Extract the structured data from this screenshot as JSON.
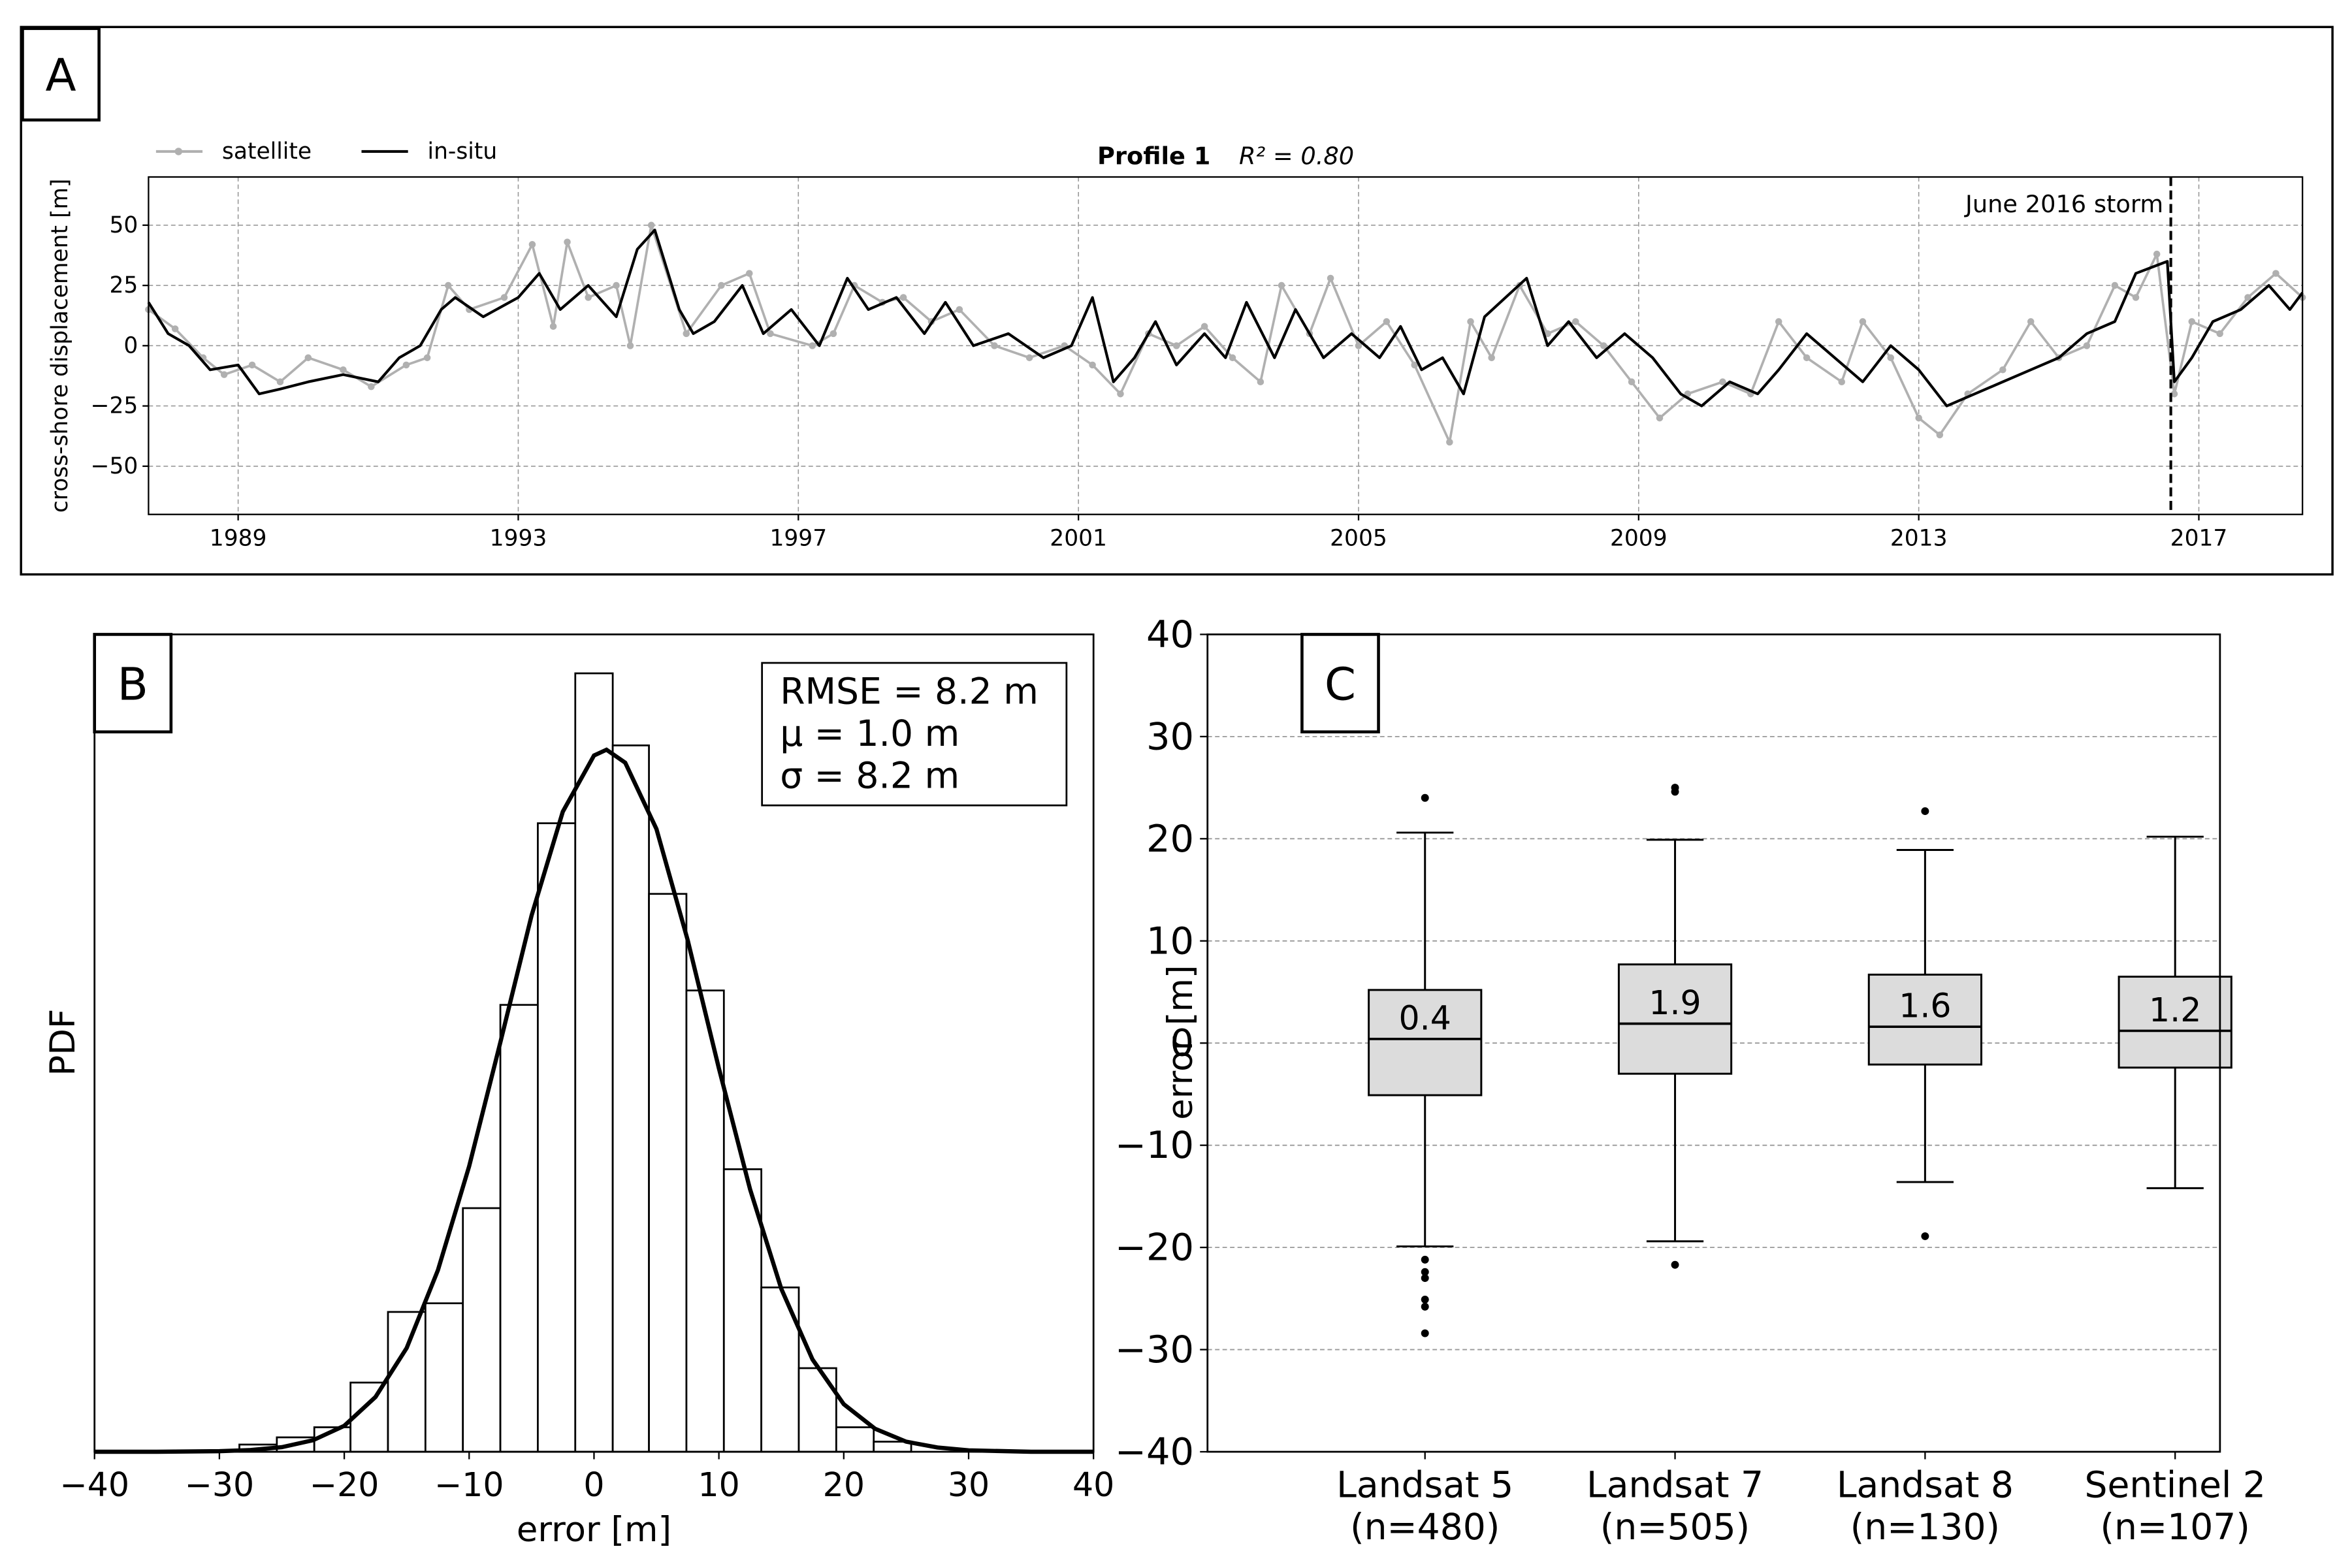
{
  "chart_data": [
    {
      "type": "line",
      "panel_label": "A",
      "title": "Profile 1",
      "subtitle": "R² = 0.80",
      "ylabel": "cross-shore displacement [m]",
      "xlim": [
        1987.72,
        2018.48
      ],
      "ylim": [
        -70,
        70
      ],
      "xticks": [
        1989,
        1993,
        1997,
        2001,
        2005,
        2009,
        2013,
        2017
      ],
      "yticks": [
        {
          "value": -50,
          "label": "−50"
        },
        {
          "value": -25,
          "label": "−25"
        },
        0,
        25,
        50
      ],
      "grid": true,
      "legend": "upper left",
      "annotations": [
        {
          "text": "June 2016 storm",
          "x": 2016.6
        }
      ],
      "series": [
        {
          "name": "satellite",
          "color": "#b0b0b0",
          "marker": true,
          "x": [
            1987.72,
            1988.1,
            1988.5,
            1988.8,
            1989.2,
            1989.6,
            1990.0,
            1990.5,
            1990.9,
            1991.4,
            1991.7,
            1992.0,
            1992.3,
            1992.8,
            1993.2,
            1993.5,
            1993.7,
            1994.0,
            1994.4,
            1994.6,
            1994.9,
            1995.4,
            1995.9,
            1996.3,
            1996.6,
            1997.2,
            1997.5,
            1997.8,
            1998.2,
            1998.5,
            1998.9,
            1999.3,
            1999.8,
            2000.3,
            2000.8,
            2001.2,
            2001.6,
            2002.0,
            2002.4,
            2002.8,
            2003.2,
            2003.6,
            2003.9,
            2004.3,
            2004.6,
            2005.0,
            2005.4,
            2005.8,
            2006.3,
            2006.6,
            2006.9,
            2007.3,
            2007.7,
            2008.1,
            2008.5,
            2008.9,
            2009.3,
            2009.7,
            2010.2,
            2010.6,
            2011.0,
            2011.4,
            2011.9,
            2012.2,
            2012.6,
            2013.0,
            2013.3,
            2013.7,
            2014.2,
            2014.6,
            2015.0,
            2015.4,
            2015.8,
            2016.1,
            2016.4,
            2016.65,
            2016.9,
            2017.3,
            2017.7,
            2018.1,
            2018.48
          ],
          "values": [
            15,
            7,
            -5,
            -12,
            -8,
            -15,
            -5,
            -10,
            -17,
            -8,
            -5,
            25,
            15,
            20,
            42,
            8,
            43,
            20,
            25,
            0,
            50,
            5,
            25,
            30,
            5,
            0,
            5,
            25,
            18,
            20,
            10,
            15,
            0,
            -5,
            0,
            -8,
            -20,
            5,
            0,
            8,
            -5,
            -15,
            25,
            5,
            28,
            0,
            10,
            -8,
            -40,
            10,
            -5,
            25,
            5,
            10,
            0,
            -15,
            -30,
            -20,
            -15,
            -20,
            10,
            -5,
            -15,
            10,
            -5,
            -30,
            -37,
            -20,
            -10,
            10,
            -5,
            0,
            25,
            20,
            38,
            -20,
            10,
            5,
            20,
            30,
            20
          ]
        },
        {
          "name": "in-situ",
          "color": "#000000",
          "x": [
            1987.72,
            1988.0,
            1988.3,
            1988.6,
            1989.0,
            1989.3,
            1989.6,
            1990.0,
            1990.5,
            1991.0,
            1991.3,
            1991.6,
            1991.9,
            1992.1,
            1992.5,
            1993.0,
            1993.3,
            1993.6,
            1994.0,
            1994.4,
            1994.7,
            1994.95,
            1995.3,
            1995.5,
            1995.8,
            1996.2,
            1996.5,
            1996.9,
            1997.3,
            1997.7,
            1998.0,
            1998.4,
            1998.8,
            1999.1,
            1999.5,
            2000.0,
            2000.5,
            2000.9,
            2001.2,
            2001.5,
            2001.8,
            2002.1,
            2002.4,
            2002.8,
            2003.1,
            2003.4,
            2003.8,
            2004.1,
            2004.5,
            2004.9,
            2005.3,
            2005.6,
            2005.9,
            2006.2,
            2006.5,
            2006.8,
            2007.1,
            2007.4,
            2007.7,
            2008.0,
            2008.4,
            2008.8,
            2009.2,
            2009.6,
            2009.9,
            2010.3,
            2010.7,
            2011.0,
            2011.4,
            2011.8,
            2012.2,
            2012.6,
            2013.0,
            2013.4,
            2013.8,
            2014.2,
            2014.6,
            2015.0,
            2015.4,
            2015.8,
            2016.1,
            2016.55,
            2016.65,
            2016.9,
            2017.2,
            2017.6,
            2018.0,
            2018.3,
            2018.48
          ],
          "values": [
            18,
            5,
            0,
            -10,
            -8,
            -20,
            -18,
            -15,
            -12,
            -15,
            -5,
            0,
            15,
            20,
            12,
            20,
            30,
            15,
            25,
            12,
            40,
            48,
            15,
            5,
            10,
            25,
            5,
            15,
            0,
            28,
            15,
            20,
            5,
            18,
            0,
            5,
            -5,
            0,
            20,
            -15,
            -5,
            10,
            -8,
            5,
            -5,
            18,
            -5,
            15,
            -5,
            5,
            -5,
            8,
            -10,
            -5,
            -20,
            12,
            20,
            28,
            0,
            10,
            -5,
            5,
            -5,
            -20,
            -25,
            -15,
            -20,
            -10,
            5,
            -5,
            -15,
            0,
            -10,
            -25,
            -20,
            -15,
            -10,
            -5,
            5,
            10,
            30,
            35,
            -15,
            -5,
            10,
            15,
            25,
            15,
            22
          ]
        }
      ]
    },
    {
      "type": "histogram",
      "panel_label": "B",
      "xlabel": "error [m]",
      "ylabel": "PDF",
      "xlim": [
        -40,
        40
      ],
      "ylim": [
        0,
        0.0567
      ],
      "xticks": [
        {
          "value": -40,
          "label": "−40"
        },
        {
          "value": -30,
          "label": "−30"
        },
        {
          "value": -20,
          "label": "−20"
        },
        {
          "value": -10,
          "label": "−10"
        },
        0,
        10,
        20,
        30,
        40
      ],
      "bins": [
        -28.4,
        -25.4,
        -22.4,
        -19.5,
        -16.5,
        -13.5,
        -10.5,
        -7.5,
        -4.5,
        -1.5,
        1.5,
        4.4,
        7.4,
        10.4,
        13.4,
        16.4,
        19.4,
        22.4,
        25.4
      ],
      "values": [
        0.0005,
        0.001,
        0.0017,
        0.0048,
        0.0097,
        0.0103,
        0.0169,
        0.031,
        0.0436,
        0.054,
        0.049,
        0.0387,
        0.032,
        0.0196,
        0.0114,
        0.0058,
        0.0017,
        0.0007
      ],
      "color": "#ffffff",
      "edgecolor": "#000000",
      "curve": {
        "color": "#000000",
        "x": [
          -40,
          -35,
          -30,
          -27.5,
          -25,
          -22.5,
          -20,
          -17.5,
          -15,
          -12.5,
          -10,
          -7.5,
          -5,
          -2.5,
          0,
          1,
          2.5,
          5,
          7.5,
          10,
          12.5,
          15,
          17.5,
          20,
          22.5,
          25,
          27.5,
          30,
          35,
          40
        ],
        "values": [
          0,
          0,
          4e-05,
          0.00012,
          0.00032,
          0.0008,
          0.0018,
          0.0038,
          0.0072,
          0.0126,
          0.0198,
          0.0284,
          0.0372,
          0.0444,
          0.0483,
          0.0487,
          0.0478,
          0.0432,
          0.0355,
          0.0266,
          0.0182,
          0.0113,
          0.0064,
          0.0033,
          0.0016,
          0.0007,
          0.0003,
          0.0001,
          0,
          0
        ]
      },
      "stats_text": [
        "RMSE = 8.2 m",
        "μ = 1.0 m",
        "σ = 8.2 m"
      ]
    },
    {
      "type": "box",
      "panel_label": "C",
      "ylabel": "error [m]",
      "ylim": [
        -40,
        40
      ],
      "yticks": [
        {
          "value": -40,
          "label": "−40"
        },
        {
          "value": -30,
          "label": "−30"
        },
        {
          "value": -20,
          "label": "−20"
        },
        {
          "value": -10,
          "label": "−10"
        },
        0,
        10,
        20,
        30,
        40
      ],
      "grid": true,
      "color": "#dcdcdc",
      "categories": [
        "Landsat 5",
        "Landsat 7",
        "Landsat 8",
        "Sentinel 2"
      ],
      "sample_labels": [
        "(n=480)",
        "(n=505)",
        "(n=130)",
        "(n=107)"
      ],
      "boxes": [
        {
          "whisker_low": -19.9,
          "q1": -5.1,
          "median": 0.4,
          "q3": 5.2,
          "whisker_high": 20.6,
          "outliers": [
            24.0,
            -21.2,
            -22.4,
            -23.0,
            -25.1,
            -25.8,
            -28.4
          ]
        },
        {
          "whisker_low": -19.4,
          "q1": -3.0,
          "median": 1.9,
          "q3": 7.7,
          "whisker_high": 19.9,
          "outliers": [
            25.0,
            24.6,
            -21.7
          ]
        },
        {
          "whisker_low": -13.6,
          "q1": -2.1,
          "median": 1.6,
          "q3": 6.7,
          "whisker_high": 18.9,
          "outliers": [
            22.7,
            -18.9
          ]
        },
        {
          "whisker_low": -14.2,
          "q1": -2.4,
          "median": 1.2,
          "q3": 6.5,
          "whisker_high": 20.2,
          "outliers": []
        }
      ]
    }
  ]
}
